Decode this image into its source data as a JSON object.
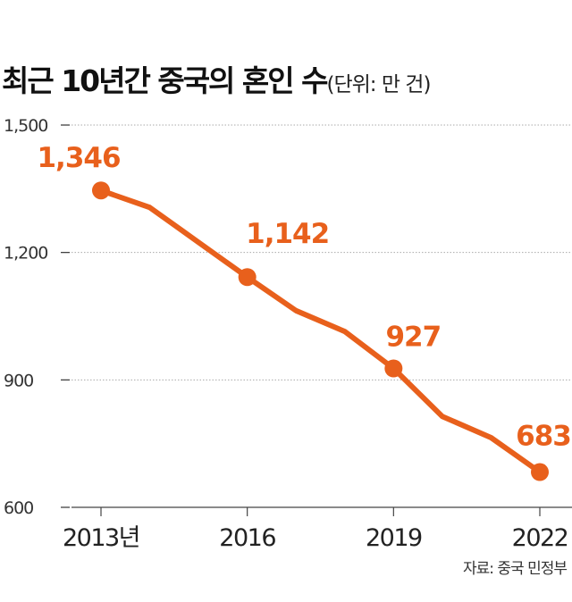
{
  "chart_data": {
    "type": "line",
    "title": "최근 10년간 중국의 혼인 수",
    "unit": "(단위: 만 건)",
    "x": [
      2013,
      2014,
      2015,
      2016,
      2017,
      2018,
      2019,
      2020,
      2021,
      2022
    ],
    "x_tick_labels": [
      {
        "x": 2013,
        "label": "2013년"
      },
      {
        "x": 2016,
        "label": "2016"
      },
      {
        "x": 2019,
        "label": "2019"
      },
      {
        "x": 2022,
        "label": "2022"
      }
    ],
    "values": [
      1346,
      1306,
      1224,
      1142,
      1063,
      1014,
      927,
      814,
      764,
      683
    ],
    "marked_points": [
      {
        "x": 2013,
        "label": "1,346"
      },
      {
        "x": 2016,
        "label": "1,142"
      },
      {
        "x": 2019,
        "label": "927"
      },
      {
        "x": 2022,
        "label": "683"
      }
    ],
    "y_ticks": [
      1500,
      1200,
      900,
      600
    ],
    "y_tick_labels": [
      "1,500",
      "1,200",
      "900",
      "600"
    ],
    "ylim": [
      600,
      1500
    ],
    "grid": "horizontal dotted",
    "color": "#e8601c",
    "source": "자료: 중국 민정부"
  }
}
